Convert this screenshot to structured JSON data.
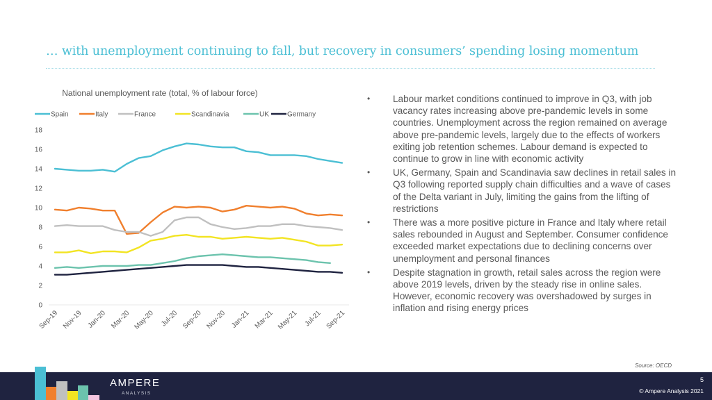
{
  "slide": {
    "title": "… with unemployment continuing to fall, but recovery in consumers’ spending losing momentum",
    "source": "Source: OECD",
    "page_number": "5",
    "copyright": "© Ampere Analysis 2021",
    "logo": {
      "name": "AMPERE",
      "subtitle": "ANALYSIS"
    },
    "logo_colors": [
      "#4bbfd4",
      "#f07f2d",
      "#c0c0c0",
      "#f2e423",
      "#6cc3ad",
      "#f4c5e0"
    ],
    "bullets": [
      "Labour market conditions continued to improve in Q3, with job vacancy rates increasing above pre-pandemic levels in some countries. Unemployment across the region remained on average above pre-pandemic levels, largely due to the effects of workers exiting job retention schemes. Labour demand is expected to continue to grow in line with economic activity",
      "UK, Germany, Spain and Scandinavia saw declines in retail sales in Q3 following reported supply chain difficulties and a wave of cases of the Delta variant in July, limiting the gains from the lifting of restrictions",
      "There was a more positive picture in France and Italy where retail sales rebounded in August and September. Consumer confidence exceeded market expectations due to declining concerns over unemployment and personal finances",
      "Despite stagnation in growth, retail sales across the region were above 2019 levels, driven by the steady rise in online sales. However, economic recovery was overshadowed by surges in inflation and rising energy prices"
    ],
    "bullet_glyph": "•"
  },
  "chart_data": {
    "type": "line",
    "title": "National unemployment rate (total, % of labour force)",
    "xlabel": "",
    "ylabel": "",
    "ylim": [
      0,
      18
    ],
    "yticks": [
      0,
      2,
      4,
      6,
      8,
      10,
      12,
      14,
      16,
      18
    ],
    "grid": false,
    "legend_position": "top",
    "x": [
      "Sep-19",
      "Oct-19",
      "Nov-19",
      "Dec-19",
      "Jan-20",
      "Feb-20",
      "Mar-20",
      "Apr-20",
      "May-20",
      "Jun-20",
      "Jul-20",
      "Aug-20",
      "Sep-20",
      "Oct-20",
      "Nov-20",
      "Dec-20",
      "Jan-21",
      "Feb-21",
      "Mar-21",
      "Apr-21",
      "May-21",
      "Jun-21",
      "Jul-21",
      "Aug-21",
      "Sep-21"
    ],
    "xtick_labels": [
      "Sep-19",
      "Nov-19",
      "Jan-20",
      "Mar-20",
      "May-20",
      "Jul-20",
      "Sep-20",
      "Nov-20",
      "Jan-21",
      "Mar-21",
      "May-21",
      "Jul-21",
      "Sep-21"
    ],
    "series": [
      {
        "name": "Spain",
        "color": "#4bbfd4",
        "values": [
          14.0,
          13.9,
          13.8,
          13.8,
          13.9,
          13.7,
          14.5,
          15.1,
          15.3,
          15.9,
          16.3,
          16.6,
          16.5,
          16.3,
          16.2,
          16.2,
          15.8,
          15.7,
          15.4,
          15.4,
          15.4,
          15.3,
          15.0,
          14.8,
          14.6
        ]
      },
      {
        "name": "Italy",
        "color": "#f07f2d",
        "values": [
          9.8,
          9.7,
          10.0,
          9.9,
          9.7,
          9.7,
          7.3,
          7.4,
          8.5,
          9.5,
          10.1,
          10.0,
          10.1,
          10.0,
          9.6,
          9.8,
          10.2,
          10.1,
          10.0,
          10.1,
          9.9,
          9.4,
          9.2,
          9.3,
          9.2
        ]
      },
      {
        "name": "France",
        "color": "#c0c0c0",
        "values": [
          8.1,
          8.2,
          8.1,
          8.1,
          8.1,
          7.7,
          7.5,
          7.5,
          7.1,
          7.5,
          8.7,
          9.0,
          9.0,
          8.3,
          8.0,
          7.8,
          7.9,
          8.1,
          8.1,
          8.3,
          8.3,
          8.1,
          8.0,
          7.9,
          7.7
        ]
      },
      {
        "name": "Scandinavia",
        "color": "#f2e423",
        "values": [
          5.4,
          5.4,
          5.6,
          5.3,
          5.5,
          5.5,
          5.4,
          5.9,
          6.6,
          6.8,
          7.1,
          7.2,
          7.0,
          7.0,
          6.8,
          6.9,
          7.0,
          6.9,
          6.8,
          6.9,
          6.7,
          6.5,
          6.1,
          6.1,
          6.2
        ]
      },
      {
        "name": "UK",
        "color": "#6cc3ad",
        "values": [
          3.8,
          3.9,
          3.8,
          3.9,
          4.0,
          4.0,
          4.0,
          4.1,
          4.1,
          4.3,
          4.5,
          4.8,
          5.0,
          5.1,
          5.2,
          5.1,
          5.0,
          4.9,
          4.9,
          4.8,
          4.7,
          4.6,
          4.4,
          4.3,
          null
        ]
      },
      {
        "name": "Germany",
        "color": "#1f2340",
        "values": [
          3.1,
          3.1,
          3.2,
          3.3,
          3.4,
          3.5,
          3.6,
          3.7,
          3.8,
          3.9,
          4.0,
          4.1,
          4.1,
          4.1,
          4.1,
          4.0,
          3.9,
          3.9,
          3.8,
          3.7,
          3.6,
          3.5,
          3.4,
          3.4,
          3.3
        ]
      }
    ]
  }
}
